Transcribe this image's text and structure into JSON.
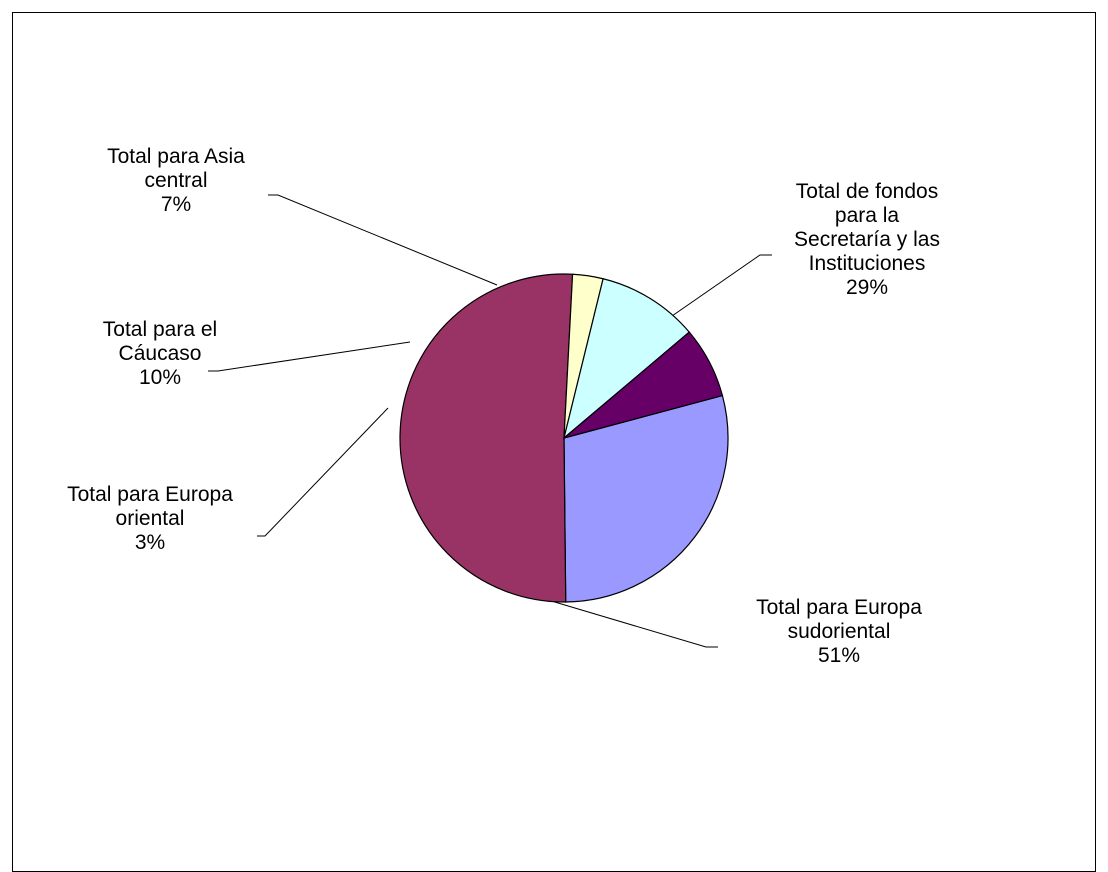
{
  "chart_data": {
    "type": "pie",
    "title": "",
    "slices": [
      {
        "label_lines": [
          "Total de fondos",
          "para la",
          "Secretaría y las",
          "Instituciones"
        ],
        "percent_label": "29%",
        "value": 29,
        "color": "#9999FF"
      },
      {
        "label_lines": [
          "Total para Europa",
          "sudoriental"
        ],
        "percent_label": "51%",
        "value": 51,
        "color": "#993366"
      },
      {
        "label_lines": [
          "Total para Europa",
          "oriental"
        ],
        "percent_label": "3%",
        "value": 3,
        "color": "#FFFFCC"
      },
      {
        "label_lines": [
          "Total para el",
          "Cáucaso"
        ],
        "percent_label": "10%",
        "value": 10,
        "color": "#CCFFFF"
      },
      {
        "label_lines": [
          "Total para Asia",
          "central"
        ],
        "percent_label": "7%",
        "value": 7,
        "color": "#660066"
      }
    ],
    "start_angle_deg": 15,
    "direction": "clockwise",
    "legend": "none",
    "leader_lines": true
  }
}
